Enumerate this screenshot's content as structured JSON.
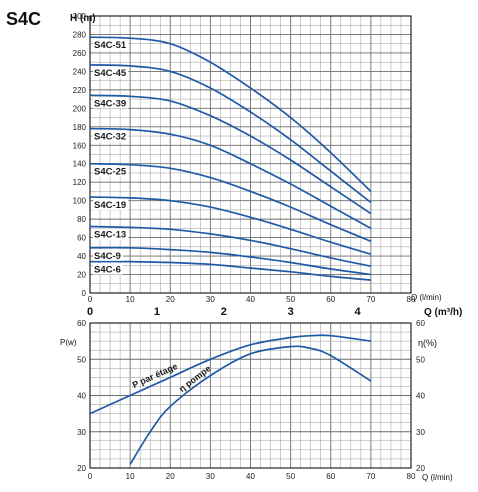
{
  "chart_data": [
    {
      "type": "line",
      "title": "S4C",
      "ylabel": "H (m)",
      "xlabel": "Q (l/min)",
      "xlabel_secondary": "Q (m³/h)",
      "xlim": [
        0,
        80
      ],
      "ylim": [
        0,
        300
      ],
      "x_ticks": [
        0,
        10,
        20,
        30,
        40,
        50,
        60,
        70,
        80
      ],
      "y_ticks": [
        0,
        20,
        40,
        60,
        80,
        100,
        120,
        140,
        160,
        180,
        200,
        220,
        240,
        260,
        280,
        300
      ],
      "x_secondary_ticks": [
        0,
        1,
        2,
        3,
        4
      ],
      "grid": true,
      "series": [
        {
          "name": "S4C-51",
          "x": [
            0,
            10,
            20,
            30,
            40,
            50,
            60,
            70
          ],
          "y": [
            277,
            276,
            270,
            250,
            222,
            190,
            152,
            110
          ]
        },
        {
          "name": "S4C-45",
          "x": [
            0,
            10,
            20,
            30,
            40,
            50,
            60,
            70
          ],
          "y": [
            247,
            246,
            240,
            222,
            196,
            166,
            132,
            98
          ]
        },
        {
          "name": "S4C-39",
          "x": [
            0,
            10,
            20,
            30,
            40,
            50,
            60,
            70
          ],
          "y": [
            214,
            213,
            208,
            192,
            170,
            144,
            115,
            86
          ]
        },
        {
          "name": "S4C-32",
          "x": [
            0,
            10,
            20,
            30,
            40,
            50,
            60,
            70
          ],
          "y": [
            178,
            177,
            172,
            160,
            140,
            118,
            94,
            70
          ]
        },
        {
          "name": "S4C-25",
          "x": [
            0,
            10,
            20,
            30,
            40,
            50,
            60,
            70
          ],
          "y": [
            140,
            139,
            135,
            125,
            110,
            93,
            74,
            56
          ]
        },
        {
          "name": "S4C-19",
          "x": [
            0,
            10,
            20,
            30,
            40,
            50,
            60,
            70
          ],
          "y": [
            104,
            103,
            100,
            93,
            82,
            69,
            55,
            42
          ]
        },
        {
          "name": "S4C-13",
          "x": [
            0,
            10,
            20,
            30,
            40,
            50,
            60,
            70
          ],
          "y": [
            72,
            71,
            69,
            64,
            57,
            48,
            38,
            29
          ]
        },
        {
          "name": "S4C-9",
          "x": [
            0,
            10,
            20,
            30,
            40,
            50,
            60,
            70
          ],
          "y": [
            49,
            49,
            47,
            44,
            39,
            33,
            26,
            20
          ]
        },
        {
          "name": "S4C-6",
          "x": [
            0,
            10,
            20,
            30,
            40,
            50,
            60,
            70
          ],
          "y": [
            34,
            34,
            33,
            31,
            27,
            23,
            18,
            14
          ]
        }
      ]
    },
    {
      "type": "line",
      "ylabel": "P(w)",
      "ylabel_right": "η(%)",
      "xlabel": "Q (l/min)",
      "xlim": [
        0,
        80
      ],
      "ylim": [
        20,
        60
      ],
      "ylim_right": [
        20,
        60
      ],
      "x_ticks": [
        0,
        10,
        20,
        30,
        40,
        50,
        60,
        70,
        80
      ],
      "y_ticks": [
        20,
        30,
        40,
        50,
        60
      ],
      "grid": true,
      "series": [
        {
          "name": "P par étage",
          "x": [
            0,
            10,
            20,
            30,
            40,
            50,
            55,
            60,
            70
          ],
          "y": [
            35,
            40,
            45,
            50,
            54,
            56,
            56.5,
            56.5,
            55
          ]
        },
        {
          "name": "η pompe",
          "x": [
            10,
            15,
            20,
            30,
            40,
            50,
            55,
            60,
            70
          ],
          "y": [
            21,
            30,
            37,
            45.5,
            51.5,
            53.5,
            53,
            51,
            44
          ]
        }
      ]
    }
  ]
}
